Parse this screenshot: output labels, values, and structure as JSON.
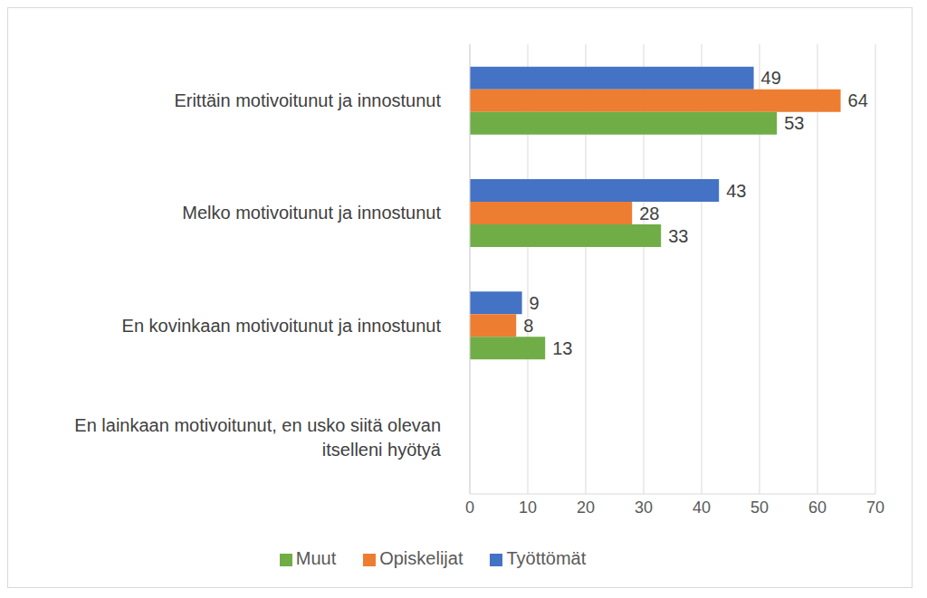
{
  "chart_data": {
    "type": "bar",
    "orientation": "horizontal",
    "categories": [
      "Erittäin motivoitunut ja innostunut",
      "Melko motivoitunut ja innostunut",
      "En kovinkaan motivoitunut ja innostunut",
      "En lainkaan motivoitunut, en usko siitä olevan itselleni hyötyä"
    ],
    "series": [
      {
        "name": "Työttömät",
        "color": "#4472c4",
        "values": [
          49,
          43,
          9,
          null
        ]
      },
      {
        "name": "Opiskelijat",
        "color": "#ed7d31",
        "values": [
          64,
          28,
          8,
          null
        ]
      },
      {
        "name": "Muut",
        "color": "#70ad47",
        "values": [
          53,
          33,
          13,
          null
        ]
      }
    ],
    "xlim": [
      0,
      70
    ],
    "xticks": [
      0,
      10,
      20,
      30,
      40,
      50,
      60,
      70
    ],
    "grid": true,
    "legend": "bottom",
    "data_labels": true
  }
}
